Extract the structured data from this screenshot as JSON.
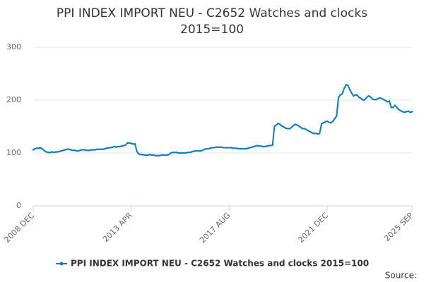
{
  "chart_data": {
    "type": "line",
    "title": [
      "PPI INDEX IMPORT NEU - C2652 Watches and clocks",
      "2015=100"
    ],
    "source": "Source:",
    "categories": [
      "2008 DEC",
      null,
      null,
      null,
      null,
      null,
      null,
      null,
      null,
      null,
      null,
      null,
      null,
      null,
      null,
      null,
      null,
      null,
      null,
      null,
      null,
      null,
      null,
      null,
      null,
      null,
      null,
      null,
      null,
      null,
      null,
      null,
      null,
      null,
      null,
      null,
      null,
      null,
      null,
      null,
      null,
      null,
      null,
      null,
      null,
      null,
      null,
      null,
      null,
      null,
      null,
      null,
      "2013 APR",
      null,
      null,
      null,
      null,
      null,
      null,
      null,
      null,
      null,
      null,
      null,
      null,
      null,
      null,
      null,
      null,
      null,
      null,
      null,
      null,
      null,
      null,
      null,
      null,
      null,
      null,
      null,
      null,
      null,
      null,
      null,
      null,
      null,
      null,
      null,
      null,
      null,
      null,
      null,
      null,
      null,
      null,
      null,
      null,
      null,
      null,
      null,
      null,
      null,
      null,
      null,
      "2017 AUG",
      null,
      null,
      null,
      null,
      null,
      null,
      null,
      null,
      null,
      null,
      null,
      null,
      null,
      null,
      null,
      null,
      null,
      null,
      null,
      null,
      null,
      null,
      null,
      null,
      null,
      null,
      null,
      null,
      null,
      null,
      null,
      null,
      null,
      null,
      null,
      null,
      null,
      null,
      null,
      null,
      null,
      null,
      null,
      null,
      null,
      null,
      null,
      null,
      null,
      null,
      null,
      "2021 DEC",
      null,
      null,
      null,
      null,
      null,
      null,
      null,
      null,
      null,
      null,
      null,
      null,
      null,
      null,
      null,
      null,
      null,
      null,
      null,
      null,
      null,
      null,
      null,
      null,
      null,
      null,
      null,
      null,
      null,
      null,
      null,
      null,
      null,
      null,
      null,
      null,
      null,
      null,
      null,
      null,
      null,
      null,
      null,
      null,
      "2025 SEP"
    ],
    "series": [
      {
        "name": "PPI INDEX IMPORT NEU - C2652 Watches and clocks 2015=100",
        "color": "#0f7dbd",
        "values": [
          106,
          108,
          109,
          109,
          110,
          107,
          104,
          102,
          101,
          101,
          102,
          101,
          102,
          102,
          103,
          104,
          105,
          106,
          107,
          107,
          106,
          105,
          105,
          104,
          104,
          105,
          106,
          106,
          105,
          105,
          105,
          106,
          106,
          106,
          107,
          107,
          107,
          107,
          108,
          109,
          110,
          110,
          111,
          112,
          111,
          112,
          112,
          113,
          114,
          115,
          119,
          119,
          118,
          117,
          117,
          103,
          98,
          97,
          97,
          96,
          96,
          96,
          97,
          96,
          96,
          95,
          95,
          95,
          96,
          96,
          96,
          96,
          97,
          100,
          101,
          101,
          101,
          100,
          100,
          100,
          100,
          100,
          101,
          101,
          102,
          103,
          104,
          104,
          104,
          104,
          105,
          107,
          108,
          108,
          109,
          110,
          110,
          111,
          111,
          111,
          111,
          110,
          110,
          110,
          110,
          110,
          109,
          109,
          109,
          108,
          108,
          108,
          108,
          108,
          109,
          110,
          111,
          112,
          113,
          114,
          113,
          113,
          112,
          112,
          113,
          114,
          114,
          115,
          150,
          153,
          156,
          154,
          151,
          149,
          147,
          146,
          146,
          148,
          152,
          154,
          153,
          151,
          148,
          146,
          146,
          144,
          142,
          140,
          138,
          137,
          137,
          136,
          137,
          155,
          157,
          159,
          160,
          158,
          157,
          160,
          165,
          170,
          205,
          210,
          212,
          222,
          229,
          228,
          220,
          213,
          208,
          210,
          209,
          205,
          203,
          200,
          201,
          205,
          208,
          206,
          202,
          201,
          201,
          203,
          204,
          203,
          201,
          199,
          197,
          198,
          186,
          186,
          190,
          186,
          182,
          180,
          178,
          177,
          178,
          179,
          177,
          178
        ]
      }
    ],
    "ylim": [
      0,
      300
    ],
    "yticks": [
      0,
      100,
      200,
      300
    ],
    "grid": true
  }
}
